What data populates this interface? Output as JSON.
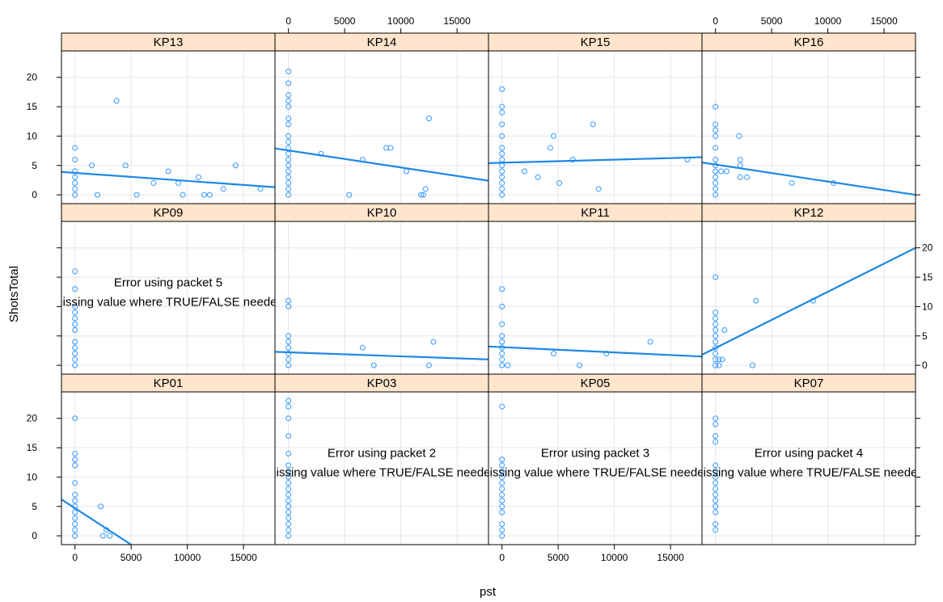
{
  "chart_data": {
    "type": "scatter",
    "kind": "lattice-trellis",
    "xlabel": "pst",
    "ylabel": "ShotsTotal",
    "x_ticks": [
      "0",
      "5000",
      "10000",
      "15000"
    ],
    "y_ticks": [
      "0",
      "5",
      "10",
      "15",
      "20"
    ],
    "xlim": [
      -1200,
      17800
    ],
    "ylim": [
      -1.5,
      24.5
    ],
    "grid": true,
    "accent_color": "#1e88e5",
    "point_color": "#3399ff",
    "strip_color": "#ffe5cc",
    "panels": [
      {
        "name": "KP13",
        "points": [
          [
            0,
            0
          ],
          [
            0,
            1
          ],
          [
            0,
            2
          ],
          [
            0,
            3
          ],
          [
            0,
            4
          ],
          [
            0,
            6
          ],
          [
            0,
            8
          ],
          [
            1500,
            5
          ],
          [
            2000,
            0
          ],
          [
            3700,
            16
          ],
          [
            4500,
            5
          ],
          [
            5500,
            0
          ],
          [
            7000,
            2
          ],
          [
            8300,
            4
          ],
          [
            9200,
            2
          ],
          [
            9600,
            0
          ],
          [
            11000,
            3
          ],
          [
            11500,
            0
          ],
          [
            12000,
            0
          ],
          [
            13200,
            1
          ],
          [
            14300,
            5
          ],
          [
            16500,
            1
          ]
        ],
        "fit": [
          [
            -1200,
            3.9
          ],
          [
            17800,
            1.3
          ]
        ]
      },
      {
        "name": "KP14",
        "points": [
          [
            0,
            0
          ],
          [
            0,
            1
          ],
          [
            0,
            2
          ],
          [
            0,
            3
          ],
          [
            0,
            4
          ],
          [
            0,
            5
          ],
          [
            0,
            6
          ],
          [
            0,
            7
          ],
          [
            0,
            8
          ],
          [
            0,
            9
          ],
          [
            0,
            10
          ],
          [
            0,
            12
          ],
          [
            0,
            13
          ],
          [
            0,
            15
          ],
          [
            0,
            16
          ],
          [
            0,
            17
          ],
          [
            0,
            19
          ],
          [
            0,
            21
          ],
          [
            2900,
            7
          ],
          [
            5400,
            0
          ],
          [
            6600,
            6
          ],
          [
            8700,
            8
          ],
          [
            9100,
            8
          ],
          [
            10500,
            4
          ],
          [
            11800,
            0
          ],
          [
            12000,
            0
          ],
          [
            12200,
            1
          ],
          [
            12500,
            13
          ]
        ],
        "fit": [
          [
            -1200,
            7.9
          ],
          [
            17800,
            2.4
          ]
        ]
      },
      {
        "name": "KP15",
        "points": [
          [
            0,
            0
          ],
          [
            0,
            1
          ],
          [
            0,
            2
          ],
          [
            0,
            3
          ],
          [
            0,
            4
          ],
          [
            0,
            5
          ],
          [
            0,
            6
          ],
          [
            0,
            7
          ],
          [
            0,
            8
          ],
          [
            0,
            10
          ],
          [
            0,
            12
          ],
          [
            0,
            14
          ],
          [
            0,
            15
          ],
          [
            0,
            18
          ],
          [
            2000,
            4
          ],
          [
            3200,
            3
          ],
          [
            4300,
            8
          ],
          [
            4600,
            10
          ],
          [
            5100,
            2
          ],
          [
            6300,
            6
          ],
          [
            8100,
            12
          ],
          [
            8600,
            1
          ],
          [
            16500,
            6
          ]
        ],
        "fit": [
          [
            -1200,
            5.4
          ],
          [
            17800,
            6.4
          ]
        ]
      },
      {
        "name": "KP16",
        "points": [
          [
            0,
            0
          ],
          [
            0,
            1
          ],
          [
            0,
            2
          ],
          [
            0,
            3
          ],
          [
            0,
            4
          ],
          [
            0,
            5
          ],
          [
            0,
            6
          ],
          [
            0,
            8
          ],
          [
            0,
            10
          ],
          [
            0,
            11
          ],
          [
            0,
            12
          ],
          [
            0,
            15
          ],
          [
            500,
            4
          ],
          [
            1000,
            4
          ],
          [
            2100,
            10
          ],
          [
            2200,
            3
          ],
          [
            2200,
            5
          ],
          [
            2200,
            6
          ],
          [
            2800,
            3
          ],
          [
            6800,
            2
          ],
          [
            10500,
            2
          ]
        ],
        "fit": [
          [
            -1200,
            5.5
          ],
          [
            17800,
            0
          ]
        ]
      },
      {
        "name": "KP09",
        "error": [
          "Error using packet 5",
          "missing value where TRUE/FALSE needed"
        ],
        "points": [
          [
            0,
            0
          ],
          [
            0,
            1
          ],
          [
            0,
            2
          ],
          [
            0,
            3
          ],
          [
            0,
            4
          ],
          [
            0,
            6
          ],
          [
            0,
            7
          ],
          [
            0,
            8
          ],
          [
            0,
            9
          ],
          [
            0,
            10
          ],
          [
            0,
            13
          ],
          [
            0,
            16
          ]
        ],
        "fit": null
      },
      {
        "name": "KP10",
        "points": [
          [
            0,
            0
          ],
          [
            0,
            1
          ],
          [
            0,
            2
          ],
          [
            0,
            3
          ],
          [
            0,
            4
          ],
          [
            0,
            5
          ],
          [
            0,
            10
          ],
          [
            0,
            11
          ],
          [
            6600,
            3
          ],
          [
            7600,
            0
          ],
          [
            12500,
            0
          ],
          [
            12900,
            4
          ]
        ],
        "fit": [
          [
            -1200,
            2.3
          ],
          [
            17800,
            1.0
          ]
        ]
      },
      {
        "name": "KP11",
        "points": [
          [
            0,
            0
          ],
          [
            0,
            1
          ],
          [
            0,
            2
          ],
          [
            0,
            3
          ],
          [
            0,
            4
          ],
          [
            0,
            5
          ],
          [
            0,
            7
          ],
          [
            0,
            10
          ],
          [
            0,
            13
          ],
          [
            500,
            0
          ],
          [
            4600,
            2
          ],
          [
            6900,
            0
          ],
          [
            9300,
            2
          ],
          [
            13200,
            4
          ]
        ],
        "fit": [
          [
            -1200,
            3.2
          ],
          [
            17800,
            1.5
          ]
        ]
      },
      {
        "name": "KP12",
        "points": [
          [
            0,
            0
          ],
          [
            0,
            1
          ],
          [
            0,
            2
          ],
          [
            0,
            3
          ],
          [
            0,
            4
          ],
          [
            0,
            5
          ],
          [
            0,
            6
          ],
          [
            0,
            7
          ],
          [
            0,
            8
          ],
          [
            0,
            9
          ],
          [
            0,
            15
          ],
          [
            300,
            0
          ],
          [
            300,
            1
          ],
          [
            600,
            1
          ],
          [
            800,
            6
          ],
          [
            3300,
            0
          ],
          [
            3600,
            11
          ],
          [
            8700,
            11
          ]
        ],
        "fit": [
          [
            -1200,
            1.8
          ],
          [
            17800,
            20.0
          ]
        ]
      },
      {
        "name": "KP01",
        "points": [
          [
            0,
            0
          ],
          [
            0,
            1
          ],
          [
            0,
            2
          ],
          [
            0,
            3
          ],
          [
            0,
            4
          ],
          [
            0,
            5
          ],
          [
            0,
            6
          ],
          [
            0,
            7
          ],
          [
            0,
            9
          ],
          [
            0,
            12
          ],
          [
            0,
            13
          ],
          [
            0,
            14
          ],
          [
            0,
            20
          ],
          [
            2300,
            5
          ],
          [
            2500,
            0
          ],
          [
            2800,
            1
          ],
          [
            3100,
            0
          ]
        ],
        "fit": [
          [
            -1200,
            6.2
          ],
          [
            5000,
            -1.5
          ]
        ]
      },
      {
        "name": "KP03",
        "error": [
          "Error using packet 2",
          "missing value where TRUE/FALSE needed"
        ],
        "points": [
          [
            0,
            0
          ],
          [
            0,
            1
          ],
          [
            0,
            2
          ],
          [
            0,
            3
          ],
          [
            0,
            4
          ],
          [
            0,
            5
          ],
          [
            0,
            6
          ],
          [
            0,
            7
          ],
          [
            0,
            8
          ],
          [
            0,
            9
          ],
          [
            0,
            10
          ],
          [
            0,
            11
          ],
          [
            0,
            12
          ],
          [
            0,
            14
          ],
          [
            0,
            17
          ],
          [
            0,
            20
          ],
          [
            0,
            22
          ],
          [
            0,
            23
          ]
        ],
        "fit": null
      },
      {
        "name": "KP05",
        "error": [
          "Error using packet 3",
          "missing value where TRUE/FALSE needed"
        ],
        "points": [
          [
            0,
            0
          ],
          [
            0,
            1
          ],
          [
            0,
            2
          ],
          [
            0,
            4
          ],
          [
            0,
            5
          ],
          [
            0,
            6
          ],
          [
            0,
            7
          ],
          [
            0,
            8
          ],
          [
            0,
            9
          ],
          [
            0,
            10
          ],
          [
            0,
            11
          ],
          [
            0,
            12
          ],
          [
            0,
            13
          ],
          [
            0,
            22
          ]
        ],
        "fit": null
      },
      {
        "name": "KP07",
        "error": [
          "Error using packet 4",
          "missing value where TRUE/FALSE needed"
        ],
        "points": [
          [
            0,
            1
          ],
          [
            0,
            2
          ],
          [
            0,
            4
          ],
          [
            0,
            5
          ],
          [
            0,
            6
          ],
          [
            0,
            7
          ],
          [
            0,
            8
          ],
          [
            0,
            9
          ],
          [
            0,
            10
          ],
          [
            0,
            11
          ],
          [
            0,
            12
          ],
          [
            0,
            16
          ],
          [
            0,
            17
          ],
          [
            0,
            19
          ],
          [
            0,
            20
          ]
        ],
        "fit": null
      }
    ]
  }
}
